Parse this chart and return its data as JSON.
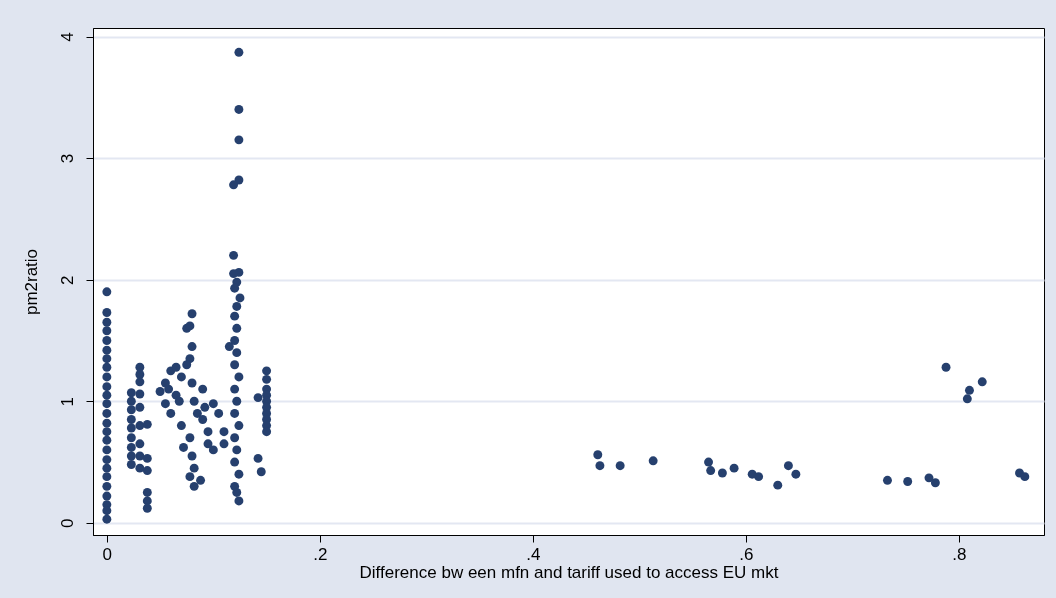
{
  "chart_data": {
    "type": "scatter",
    "xlabel": "Difference bw een mfn and tariff used to access EU mkt",
    "ylabel": "pm2ratio",
    "xlim": [
      -0.013,
      0.88
    ],
    "ylim": [
      -0.1,
      4.07
    ],
    "xticks": [
      {
        "value": 0,
        "label": "0"
      },
      {
        "value": 0.2,
        "label": ".2"
      },
      {
        "value": 0.4,
        "label": ".4"
      },
      {
        "value": 0.6,
        "label": ".6"
      },
      {
        "value": 0.8,
        "label": ".8"
      }
    ],
    "yticks": [
      0,
      1,
      2,
      3,
      4
    ],
    "grid": "y",
    "marker": "circle",
    "series": [
      {
        "color": "#26406e",
        "x": [
          0,
          0,
          0,
          0,
          0,
          0,
          0,
          0,
          0,
          0,
          0,
          0,
          0,
          0,
          0,
          0,
          0,
          0,
          0,
          0,
          0,
          0,
          0,
          0,
          0,
          0.023,
          0.023,
          0.023,
          0.023,
          0.023,
          0.023,
          0.023,
          0.023,
          0.023,
          0.031,
          0.031,
          0.031,
          0.031,
          0.031,
          0.031,
          0.031,
          0.031,
          0.031,
          0.038,
          0.038,
          0.038,
          0.038,
          0.038,
          0.038,
          0.05,
          0.055,
          0.06,
          0.065,
          0.055,
          0.06,
          0.065,
          0.07,
          0.07,
          0.072,
          0.075,
          0.078,
          0.08,
          0.08,
          0.078,
          0.075,
          0.08,
          0.082,
          0.085,
          0.078,
          0.08,
          0.082,
          0.078,
          0.082,
          0.088,
          0.09,
          0.092,
          0.095,
          0.1,
          0.105,
          0.1,
          0.09,
          0.068,
          0.058,
          0.095,
          0.11,
          0.11,
          0.124,
          0.124,
          0.124,
          0.124,
          0.119,
          0.119,
          0.124,
          0.119,
          0.122,
          0.12,
          0.125,
          0.122,
          0.12,
          0.122,
          0.12,
          0.115,
          0.122,
          0.12,
          0.124,
          0.12,
          0.122,
          0.12,
          0.124,
          0.12,
          0.122,
          0.12,
          0.124,
          0.12,
          0.122,
          0.124,
          0.15,
          0.15,
          0.15,
          0.15,
          0.15,
          0.15,
          0.15,
          0.15,
          0.15,
          0.15,
          0.142,
          0.142,
          0.145,
          0.461,
          0.463,
          0.482,
          0.513,
          0.565,
          0.567,
          0.578,
          0.589,
          0.606,
          0.612,
          0.63,
          0.64,
          0.647,
          0.733,
          0.752,
          0.772,
          0.778,
          0.788,
          0.808,
          0.81,
          0.822,
          0.857,
          0.862
        ],
        "values": [
          1.9,
          1.73,
          1.65,
          1.58,
          1.5,
          1.42,
          1.35,
          1.28,
          1.2,
          1.12,
          1.05,
          0.98,
          0.9,
          0.82,
          0.75,
          0.68,
          0.6,
          0.52,
          0.45,
          0.38,
          0.3,
          0.22,
          0.15,
          0.1,
          0.03,
          1.07,
          1.0,
          0.93,
          0.85,
          0.78,
          0.7,
          0.62,
          0.55,
          0.48,
          1.28,
          1.22,
          1.16,
          1.06,
          0.95,
          0.8,
          0.65,
          0.55,
          0.45,
          0.81,
          0.53,
          0.43,
          0.25,
          0.18,
          0.12,
          1.08,
          1.15,
          1.25,
          1.28,
          0.98,
          0.9,
          1.05,
          1.2,
          0.8,
          0.62,
          1.6,
          1.62,
          1.72,
          1.45,
          1.35,
          1.3,
          1.15,
          1.0,
          0.9,
          0.7,
          0.55,
          0.45,
          0.38,
          0.3,
          0.35,
          0.85,
          0.95,
          0.75,
          0.98,
          0.9,
          0.6,
          1.1,
          1.0,
          1.1,
          0.65,
          0.75,
          0.65,
          3.87,
          3.4,
          3.15,
          2.82,
          2.78,
          2.2,
          2.06,
          2.05,
          1.98,
          1.93,
          1.85,
          1.78,
          1.7,
          1.6,
          1.5,
          1.45,
          1.4,
          1.3,
          1.2,
          1.1,
          1.0,
          0.9,
          0.8,
          0.7,
          0.6,
          0.5,
          0.4,
          0.3,
          0.25,
          0.18,
          1.25,
          1.18,
          1.1,
          1.05,
          1.0,
          0.95,
          0.9,
          0.85,
          0.8,
          0.75,
          1.03,
          0.53,
          0.42,
          0.56,
          0.47,
          0.47,
          0.51,
          0.5,
          0.43,
          0.41,
          0.45,
          0.4,
          0.38,
          0.31,
          0.47,
          0.4,
          0.35,
          0.34,
          0.37,
          0.33,
          1.28,
          1.02,
          1.09,
          1.16,
          0.41,
          0.38
        ]
      }
    ]
  }
}
